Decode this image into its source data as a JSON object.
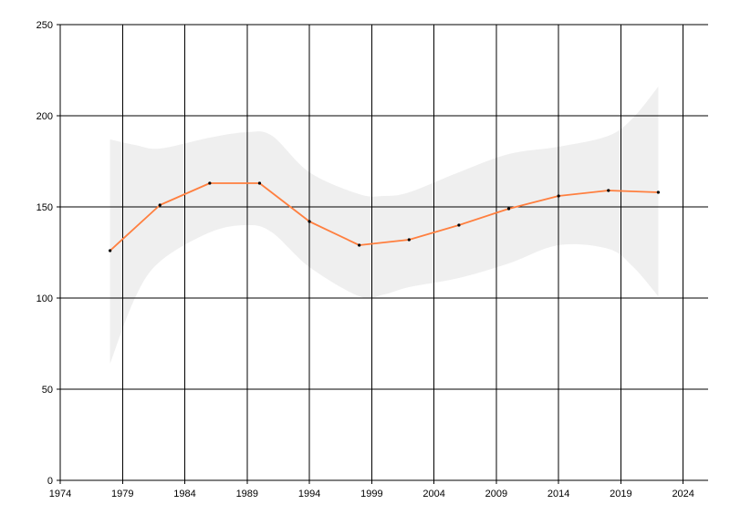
{
  "chart_data": {
    "type": "line",
    "title": "",
    "xlabel": "",
    "ylabel": "",
    "xlim": [
      1974,
      2026
    ],
    "ylim": [
      0,
      250
    ],
    "x_ticks": [
      1974,
      1979,
      1984,
      1989,
      1994,
      1999,
      2004,
      2009,
      2014,
      2019,
      2024
    ],
    "y_ticks": [
      0,
      50,
      100,
      150,
      200,
      250
    ],
    "grid": true,
    "legend": "none",
    "colors": {
      "line": "#ff7f3f",
      "band": "#efefef",
      "grid": "#000000",
      "marker": "#000000"
    },
    "series": [
      {
        "x": [
          1978,
          1982,
          1986,
          1990,
          1994,
          1998,
          2002,
          2006,
          2010,
          2014,
          2018,
          2022
        ],
        "y": [
          126,
          151,
          163,
          163,
          142,
          129,
          132,
          140,
          149,
          156,
          159,
          158
        ]
      }
    ],
    "band": {
      "x": [
        1978,
        1980,
        1982,
        1986,
        1989,
        1991,
        1994,
        1998,
        2000,
        2002,
        2006,
        2010,
        2014,
        2018,
        2020,
        2022
      ],
      "upper": [
        187,
        184,
        182,
        188,
        191,
        189,
        169,
        157,
        156,
        158,
        169,
        179,
        183,
        189,
        199,
        216
      ],
      "lower": [
        64,
        100,
        120,
        136,
        140,
        136,
        117,
        101,
        102,
        106,
        111,
        119,
        129,
        127,
        117,
        101
      ]
    }
  }
}
